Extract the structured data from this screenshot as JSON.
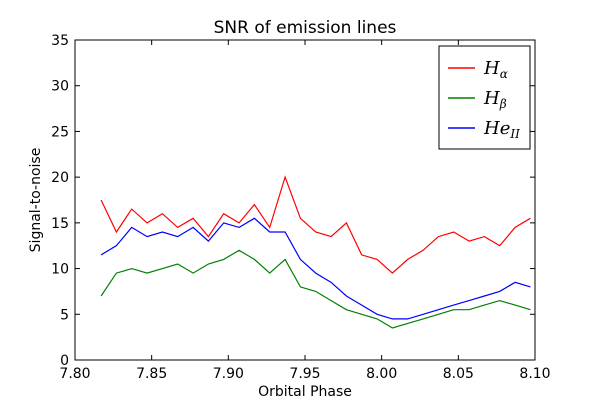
{
  "chart_data": {
    "type": "line",
    "title": "SNR of emission lines",
    "xlabel": "Orbital Phase",
    "ylabel": "Signal-to-noise",
    "xlim": [
      7.8,
      8.1
    ],
    "ylim": [
      0,
      35
    ],
    "xticks": [
      "7.80",
      "7.85",
      "7.90",
      "7.95",
      "8.00",
      "8.05",
      "8.10"
    ],
    "yticks": [
      "0",
      "5",
      "10",
      "15",
      "20",
      "25",
      "30",
      "35"
    ],
    "grid": false,
    "legend_position": "top-right",
    "x": [
      7.817,
      7.827,
      7.837,
      7.847,
      7.857,
      7.867,
      7.877,
      7.887,
      7.897,
      7.907,
      7.917,
      7.927,
      7.937,
      7.947,
      7.957,
      7.967,
      7.977,
      7.987,
      7.997,
      8.007,
      8.017,
      8.027,
      8.037,
      8.047,
      8.057,
      8.067,
      8.077,
      8.087,
      8.097
    ],
    "series": [
      {
        "name": "H",
        "sub": "α",
        "color": "#ff0000",
        "values": [
          17.5,
          14.0,
          16.5,
          15.0,
          16.0,
          14.5,
          15.5,
          13.5,
          16.0,
          15.0,
          17.0,
          14.5,
          20.0,
          15.5,
          14.0,
          13.5,
          15.0,
          11.5,
          11.0,
          9.5,
          11.0,
          12.0,
          13.5,
          14.0,
          13.0,
          13.5,
          12.5,
          14.5,
          15.5
        ]
      },
      {
        "name": "H",
        "sub": "β",
        "color": "#008000",
        "values": [
          7.0,
          9.5,
          10.0,
          9.5,
          10.0,
          10.5,
          9.5,
          10.5,
          11.0,
          12.0,
          11.0,
          9.5,
          11.0,
          8.0,
          7.5,
          6.5,
          5.5,
          5.0,
          4.5,
          3.5,
          4.0,
          4.5,
          5.0,
          5.5,
          5.5,
          6.0,
          6.5,
          6.0,
          5.5
        ]
      },
      {
        "name": "He",
        "sub": "II",
        "color": "#0000ff",
        "values": [
          11.5,
          12.5,
          14.5,
          13.5,
          14.0,
          13.5,
          14.5,
          13.0,
          15.0,
          14.5,
          15.5,
          14.0,
          14.0,
          11.0,
          9.5,
          8.5,
          7.0,
          6.0,
          5.0,
          4.5,
          4.5,
          5.0,
          5.5,
          6.0,
          6.5,
          7.0,
          7.5,
          8.5,
          8.0
        ]
      }
    ]
  }
}
